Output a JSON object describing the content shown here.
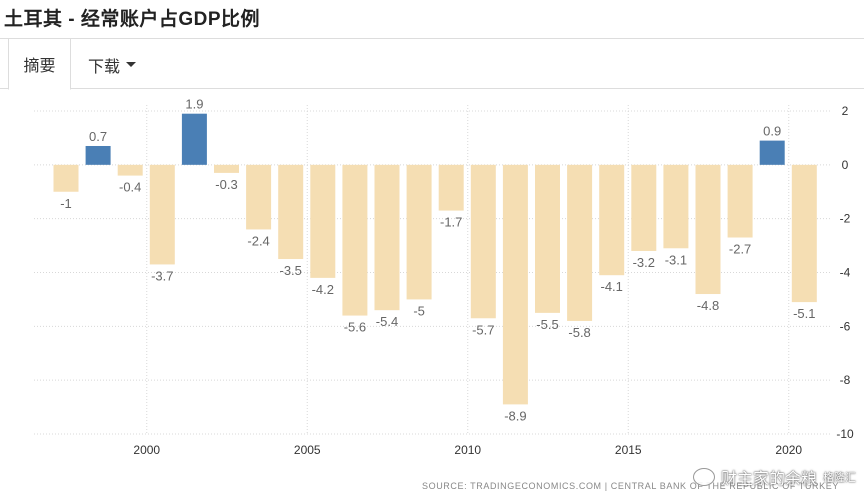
{
  "page": {
    "title": "土耳其 - 经常账户占GDP比例"
  },
  "tabs": [
    {
      "label": "摘要"
    },
    {
      "label": "下载"
    }
  ],
  "watermark": {
    "text": "财主家的余粮",
    "logo": "格隆汇"
  },
  "source_text": "SOURCE: TRADINGECONOMICS.COM  |  CENTRAL BANK OF THE REPUBLIC OF TURKEY",
  "colors": {
    "positive": "#4a7fb5",
    "negative": "#f5deb3",
    "grid": "#d8d8d8"
  },
  "chart_data": {
    "type": "bar",
    "categories": [
      1997,
      1998,
      1999,
      2000,
      2001,
      2002,
      2003,
      2004,
      2005,
      2006,
      2007,
      2008,
      2009,
      2010,
      2011,
      2012,
      2013,
      2014,
      2015,
      2016,
      2017,
      2018,
      2019,
      2020
    ],
    "values": [
      -1,
      0.7,
      -0.4,
      -3.7,
      1.9,
      -0.3,
      -2.4,
      -3.5,
      -4.2,
      -5.6,
      -5.4,
      -5,
      -1.7,
      -5.7,
      -8.9,
      -5.5,
      -5.8,
      -4.1,
      -3.2,
      -3.1,
      -4.8,
      -2.7,
      0.9,
      -5.1
    ],
    "labels": [
      "-1",
      "0.7",
      "-0.4",
      "-3.7",
      "1.9",
      "-0.3",
      "-2.4",
      "-3.5",
      "-4.2",
      "-5.6",
      "-5.4",
      "-5",
      "-1.7",
      "-5.7",
      "-8.9",
      "-5.5",
      "-5.8",
      "-4.1",
      "-3.2",
      "-3.1",
      "-4.8",
      "-2.7",
      "0.9",
      "-5.1"
    ],
    "title": "",
    "xlabel": "",
    "ylabel": "",
    "ylim": [
      -10,
      2
    ],
    "y_ticks": [
      2,
      0,
      -2,
      -4,
      -6,
      -8,
      -10
    ],
    "x_ticks": [
      2000,
      2005,
      2010,
      2015,
      2020
    ],
    "y_axis_side": "right",
    "grid": true
  }
}
